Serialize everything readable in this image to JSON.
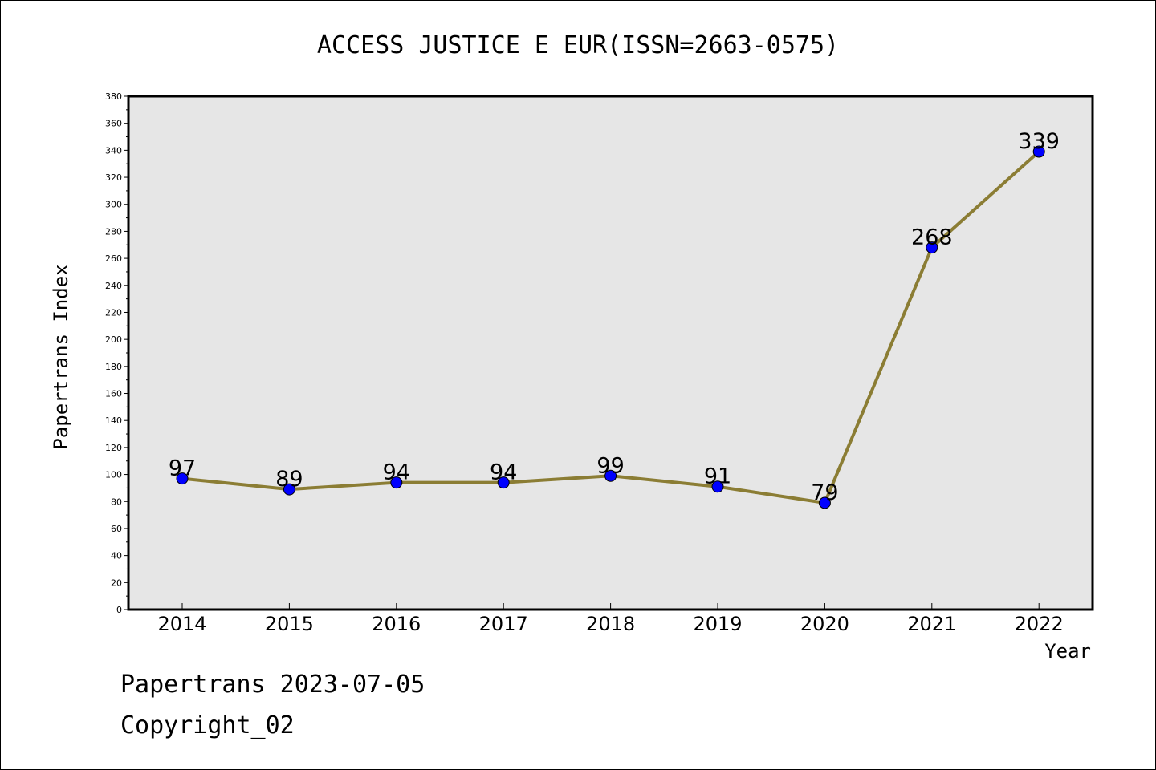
{
  "chart_data": {
    "type": "line",
    "title": "ACCESS JUSTICE E EUR(ISSN=2663-0575)",
    "xlabel": "Year",
    "ylabel": "Papertrans Index",
    "categories": [
      "2014",
      "2015",
      "2016",
      "2017",
      "2018",
      "2019",
      "2020",
      "2021",
      "2022"
    ],
    "series": [
      {
        "values": [
          97,
          89,
          94,
          94,
          99,
          91,
          79,
          268,
          339
        ]
      }
    ],
    "ylim": [
      0,
      380
    ],
    "yticks": [
      0,
      20,
      40,
      60,
      80,
      100,
      120,
      140,
      160,
      180,
      200,
      220,
      240,
      260,
      280,
      300,
      320,
      340,
      360,
      380
    ],
    "grid": false,
    "legend": "none",
    "colors": {
      "line": "#8b7d34",
      "marker": "#0000ff",
      "plot_background": "#e6e6e6"
    }
  },
  "footer": {
    "line1": "Papertrans 2023-07-05",
    "line2": "Copyright_02"
  }
}
